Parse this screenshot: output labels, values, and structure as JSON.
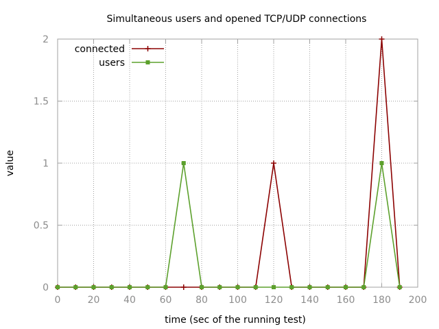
{
  "chart_data": {
    "type": "line",
    "title": "Simultaneous users and opened TCP/UDP connections",
    "xlabel": "time (sec of the running test)",
    "ylabel": "value",
    "xlim": [
      0,
      200
    ],
    "ylim": [
      0,
      2
    ],
    "xticks": [
      0,
      20,
      40,
      60,
      80,
      100,
      120,
      140,
      160,
      180,
      200
    ],
    "yticks": [
      0,
      0.5,
      1,
      1.5,
      2
    ],
    "xtick_labels": [
      "0",
      "20",
      "40",
      "60",
      "80",
      "100",
      "120",
      "140",
      "160",
      "180",
      "200"
    ],
    "ytick_labels": [
      "0",
      "0.5",
      "1",
      "1.5",
      "2"
    ],
    "grid": true,
    "legend_position": "top-left",
    "x": [
      0,
      10,
      20,
      30,
      40,
      50,
      60,
      70,
      80,
      90,
      100,
      110,
      120,
      130,
      140,
      150,
      160,
      170,
      180,
      190
    ],
    "series": [
      {
        "name": "connected",
        "color": "#8b0000",
        "marker": "plus",
        "values": [
          0,
          0,
          0,
          0,
          0,
          0,
          0,
          0,
          0,
          0,
          0,
          0,
          1,
          0,
          0,
          0,
          0,
          0,
          2,
          0
        ]
      },
      {
        "name": "users",
        "color": "#5ca02c",
        "marker": "square",
        "values": [
          0,
          0,
          0,
          0,
          0,
          0,
          0,
          1,
          0,
          0,
          0,
          0,
          0,
          0,
          0,
          0,
          0,
          0,
          1,
          0
        ]
      }
    ]
  }
}
